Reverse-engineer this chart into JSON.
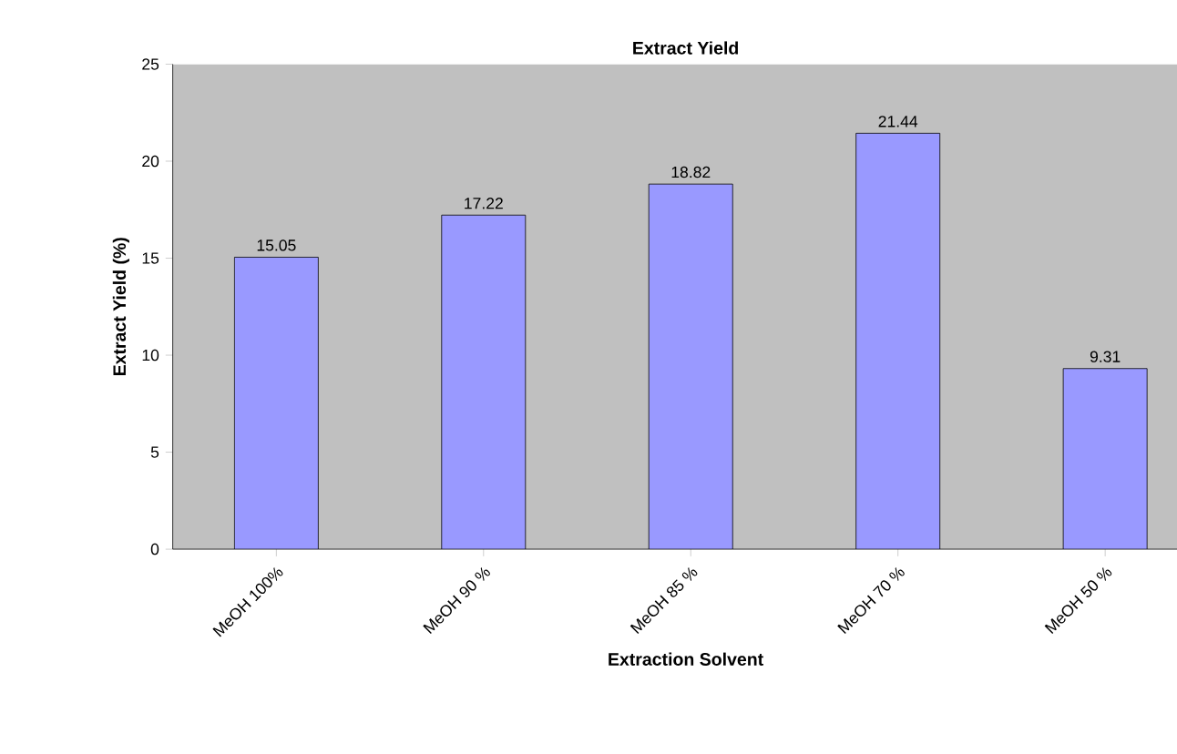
{
  "chart_data": {
    "type": "bar",
    "title": "Extract Yield",
    "xlabel": "Extraction Solvent",
    "ylabel": "Extract Yield (%)",
    "categories": [
      "MeOH 100%",
      "MeOH 90 %",
      "MeOH 85 %",
      "MeOH 70 %",
      "MeOH 50 %"
    ],
    "values": [
      15.05,
      17.22,
      18.82,
      21.44,
      9.31
    ],
    "color": "#9999ff",
    "ylim": [
      0,
      25
    ],
    "yticks": [
      0,
      5,
      10,
      15,
      20,
      25
    ],
    "data_labels": true
  }
}
